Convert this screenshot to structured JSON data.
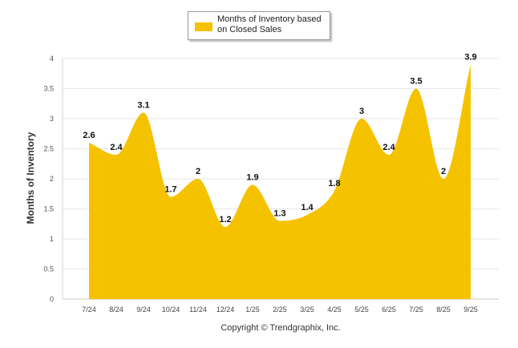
{
  "chart_data": {
    "type": "area",
    "categories": [
      "7/24",
      "8/24",
      "9/24",
      "10/24",
      "11/24",
      "12/24",
      "1/25",
      "2/25",
      "3/25",
      "4/25",
      "5/25",
      "6/25",
      "7/25",
      "8/25",
      "9/25"
    ],
    "series": [
      {
        "name": "Months of Inventory based on Closed Sales",
        "values": [
          2.6,
          2.4,
          3.1,
          1.7,
          2,
          1.2,
          1.9,
          1.3,
          1.4,
          1.8,
          3,
          2.4,
          3.5,
          2,
          3.9
        ],
        "color": "#f5c200"
      }
    ],
    "ylabel": "Months of Inventory",
    "ylim": [
      0,
      4
    ],
    "yticks": [
      "0",
      "0.5",
      "1",
      "1.5",
      "2",
      "2.5",
      "3",
      "3.5",
      "4"
    ],
    "grid": true,
    "legend": "top-center"
  },
  "legend": {
    "label": "Months of Inventory based on Closed Sales"
  },
  "footer": {
    "copyright": "Copyright © Trendgraphix, Inc."
  }
}
